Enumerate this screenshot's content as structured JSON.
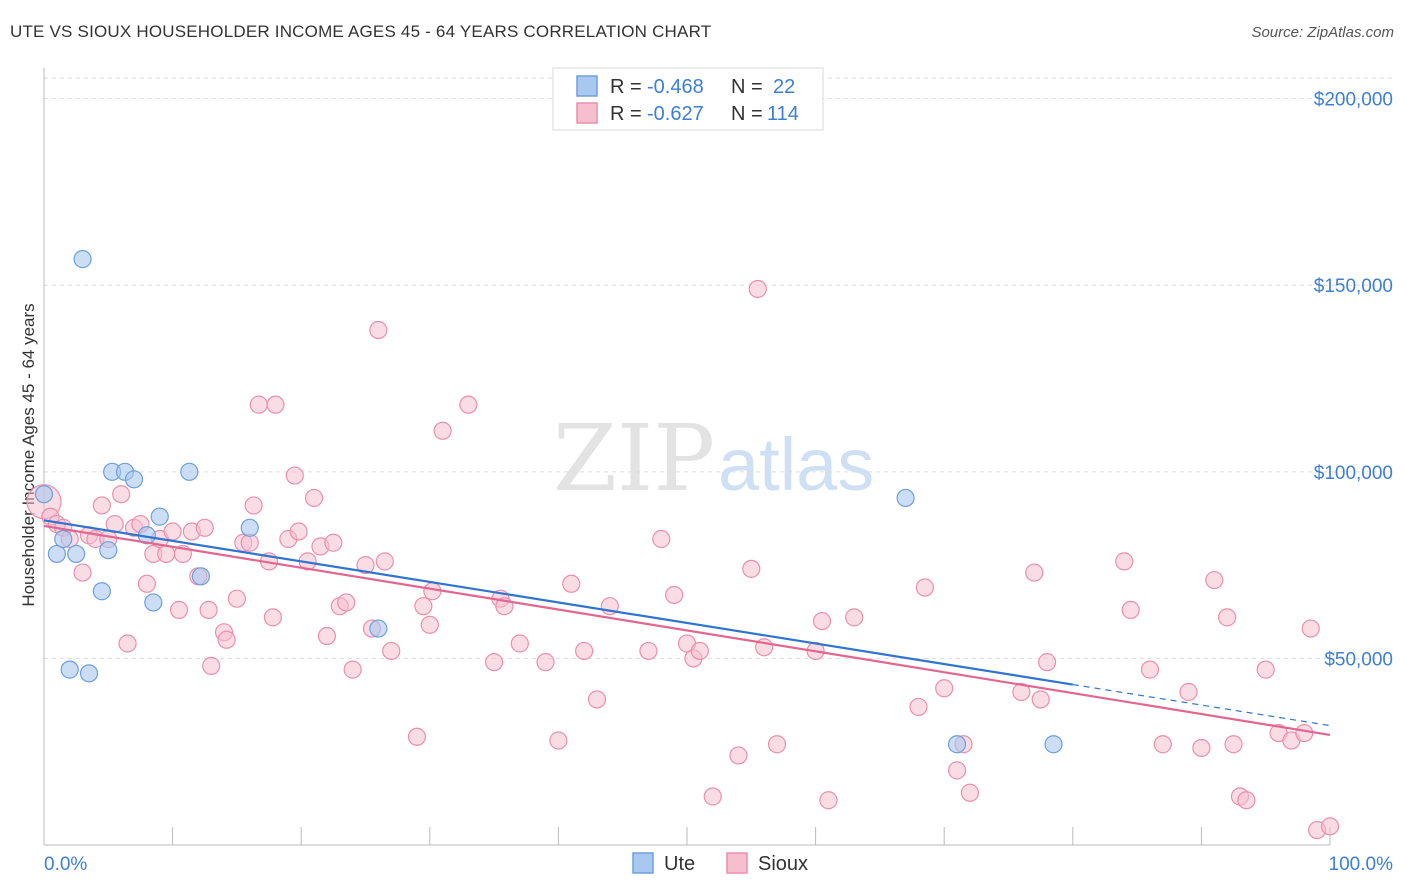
{
  "header": {
    "title": "UTE VS SIOUX HOUSEHOLDER INCOME AGES 45 - 64 YEARS CORRELATION CHART",
    "source": "Source: ZipAtlas.com"
  },
  "watermark": {
    "zip": "ZIP",
    "atlas": "atlas"
  },
  "colors": {
    "ute_fill": "#a9c8ef",
    "ute_stroke": "#6e9fde",
    "ute_line": "#2f74d0",
    "sioux_fill": "#f6bfd0",
    "sioux_stroke": "#ec8fae",
    "sioux_line": "#e2668f",
    "grid": "#dddddd",
    "axis": "#bbbbbb"
  },
  "legend": {
    "rows": [
      {
        "series": "Ute",
        "r_label": "R =",
        "r_value": "-0.468",
        "n_label": "N =",
        "n_value": "22"
      },
      {
        "series": "Sioux",
        "r_label": "R =",
        "r_value": "-0.627",
        "n_label": "N =",
        "n_value": "114"
      }
    ]
  },
  "chart_data": {
    "type": "scatter",
    "title": "UTE VS SIOUX HOUSEHOLDER INCOME AGES 45 - 64 YEARS CORRELATION CHART",
    "xlabel": "",
    "ylabel": "Householder Income Ages 45 - 64 years",
    "xlim": [
      0,
      100
    ],
    "ylim": [
      0,
      205000
    ],
    "x_tick_labels": [
      "0.0%",
      "100.0%"
    ],
    "y_ticks": [
      50000,
      100000,
      150000,
      200000
    ],
    "y_tick_labels": [
      "$50,000",
      "$100,000",
      "$150,000",
      "$200,000"
    ],
    "grid": true,
    "legend_position": "top-center and bottom",
    "series": [
      {
        "name": "Ute",
        "points": [
          [
            0,
            94000
          ],
          [
            1,
            78000
          ],
          [
            2,
            47000
          ],
          [
            3,
            157000
          ],
          [
            3.5,
            46000
          ],
          [
            2.5,
            78000
          ],
          [
            4.5,
            68000
          ],
          [
            5,
            79000
          ],
          [
            5.3,
            100000
          ],
          [
            6.3,
            100000
          ],
          [
            7,
            98000
          ],
          [
            8,
            83000
          ],
          [
            8.5,
            65000
          ],
          [
            9,
            88000
          ],
          [
            11.3,
            100000
          ],
          [
            12.2,
            72000
          ],
          [
            16,
            85000
          ],
          [
            26,
            58000
          ],
          [
            67,
            93000
          ],
          [
            71,
            27000
          ],
          [
            78.5,
            27000
          ],
          [
            1.5,
            82000
          ]
        ],
        "trend": {
          "x": [
            0,
            80
          ],
          "y": [
            87000,
            43000
          ],
          "dashed_extension": {
            "x": [
              80,
              100
            ],
            "y": [
              43000,
              32000
            ]
          }
        }
      },
      {
        "name": "Sioux",
        "points": [
          [
            0,
            92000
          ],
          [
            0.5,
            88000
          ],
          [
            1,
            86000
          ],
          [
            1.5,
            85000
          ],
          [
            2,
            82000
          ],
          [
            3,
            73000
          ],
          [
            3.5,
            83000
          ],
          [
            4,
            82000
          ],
          [
            4.5,
            91000
          ],
          [
            5,
            82000
          ],
          [
            5.5,
            86000
          ],
          [
            6,
            94000
          ],
          [
            6.5,
            54000
          ],
          [
            7,
            85000
          ],
          [
            7.5,
            86000
          ],
          [
            8,
            70000
          ],
          [
            8.5,
            78000
          ],
          [
            9,
            82000
          ],
          [
            9.5,
            78000
          ],
          [
            10,
            84000
          ],
          [
            10.5,
            63000
          ],
          [
            10.8,
            78000
          ],
          [
            11.5,
            84000
          ],
          [
            12,
            72000
          ],
          [
            12.5,
            85000
          ],
          [
            12.8,
            63000
          ],
          [
            13,
            48000
          ],
          [
            14,
            57000
          ],
          [
            14.2,
            55000
          ],
          [
            15,
            66000
          ],
          [
            15.5,
            81000
          ],
          [
            16,
            81000
          ],
          [
            16.3,
            91000
          ],
          [
            16.7,
            118000
          ],
          [
            17.5,
            76000
          ],
          [
            17.8,
            61000
          ],
          [
            18,
            118000
          ],
          [
            19,
            82000
          ],
          [
            19.5,
            99000
          ],
          [
            19.8,
            84000
          ],
          [
            20.5,
            76000
          ],
          [
            21,
            93000
          ],
          [
            21.5,
            80000
          ],
          [
            22,
            56000
          ],
          [
            22.5,
            81000
          ],
          [
            23,
            64000
          ],
          [
            23.5,
            65000
          ],
          [
            24,
            47000
          ],
          [
            25,
            75000
          ],
          [
            25.5,
            58000
          ],
          [
            26,
            138000
          ],
          [
            26.5,
            76000
          ],
          [
            27,
            52000
          ],
          [
            29,
            29000
          ],
          [
            29.5,
            64000
          ],
          [
            30,
            59000
          ],
          [
            30.2,
            68000
          ],
          [
            31,
            111000
          ],
          [
            33,
            118000
          ],
          [
            35,
            49000
          ],
          [
            35.5,
            66000
          ],
          [
            35.8,
            64000
          ],
          [
            37,
            54000
          ],
          [
            39,
            49000
          ],
          [
            40,
            28000
          ],
          [
            41,
            70000
          ],
          [
            42,
            52000
          ],
          [
            43,
            39000
          ],
          [
            44,
            64000
          ],
          [
            47,
            52000
          ],
          [
            48,
            82000
          ],
          [
            49,
            67000
          ],
          [
            50,
            54000
          ],
          [
            50.5,
            50000
          ],
          [
            51,
            52000
          ],
          [
            52,
            13000
          ],
          [
            54,
            24000
          ],
          [
            55,
            74000
          ],
          [
            55.5,
            149000
          ],
          [
            56,
            53000
          ],
          [
            57,
            27000
          ],
          [
            60,
            52000
          ],
          [
            60.5,
            60000
          ],
          [
            61,
            12000
          ],
          [
            63,
            61000
          ],
          [
            68,
            37000
          ],
          [
            68.5,
            69000
          ],
          [
            70,
            42000
          ],
          [
            71,
            20000
          ],
          [
            71.5,
            27000
          ],
          [
            72,
            14000
          ],
          [
            76,
            41000
          ],
          [
            77,
            73000
          ],
          [
            77.5,
            39000
          ],
          [
            78,
            49000
          ],
          [
            84,
            76000
          ],
          [
            84.5,
            63000
          ],
          [
            86,
            47000
          ],
          [
            87,
            27000
          ],
          [
            89,
            41000
          ],
          [
            90,
            26000
          ],
          [
            91,
            71000
          ],
          [
            92,
            61000
          ],
          [
            93,
            13000
          ],
          [
            93.5,
            12000
          ],
          [
            95,
            47000
          ],
          [
            96,
            30000
          ],
          [
            97,
            28000
          ],
          [
            98,
            30000
          ],
          [
            98.5,
            58000
          ],
          [
            99,
            4000
          ],
          [
            100,
            5000
          ],
          [
            92.5,
            27000
          ]
        ],
        "trend": {
          "x": [
            0,
            100
          ],
          "y": [
            85500,
            29500
          ]
        }
      }
    ]
  }
}
